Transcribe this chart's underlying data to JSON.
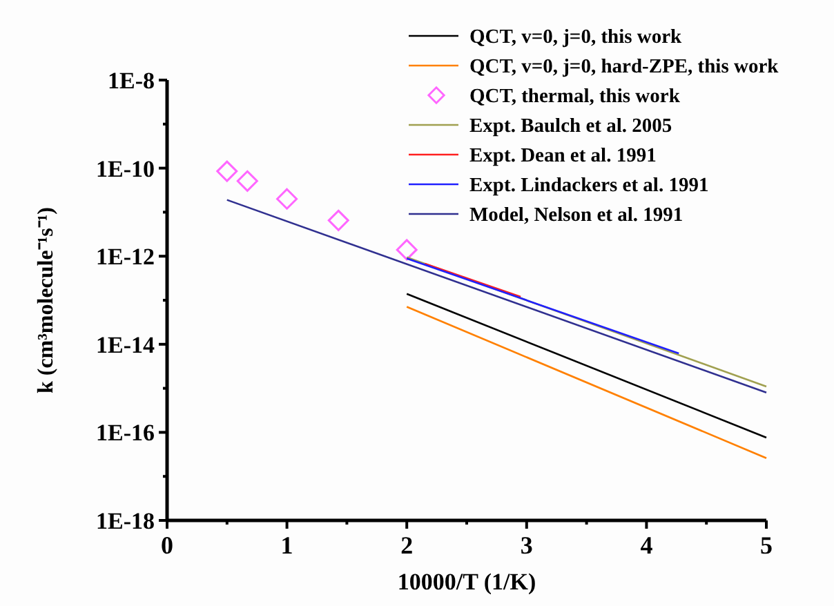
{
  "chart_data": {
    "type": "line",
    "xlabel": "10000/T (1/K)",
    "ylabel": "k (cm³molecule⁻¹s⁻¹)",
    "log": "y",
    "legend": "top right",
    "grid": false,
    "xlim": [
      0,
      5
    ],
    "xticks": [
      0,
      {
        "value": 0.5,
        "label": null
      },
      1,
      {
        "value": 1.5,
        "label": null
      },
      2,
      {
        "value": 2.5,
        "label": null
      },
      3,
      {
        "value": 3.5,
        "label": null
      },
      4,
      {
        "value": 4.5,
        "label": null
      },
      5
    ],
    "ylim": [
      1e-18,
      1e-08
    ],
    "yticks": [
      {
        "value": 1e-18,
        "label": "1E-18"
      },
      {
        "value": 1e-17,
        "label": null
      },
      {
        "value": 1e-16,
        "label": "1E-16"
      },
      {
        "value": 1e-15,
        "label": null
      },
      {
        "value": 1e-14,
        "label": "1E-14"
      },
      {
        "value": 1e-13,
        "label": null
      },
      {
        "value": 1e-12,
        "label": "1E-12"
      },
      {
        "value": 1e-11,
        "label": null
      },
      {
        "value": 1e-10,
        "label": "1E-10"
      },
      {
        "value": 1e-09,
        "label": null
      },
      {
        "value": 1e-08,
        "label": "1E-8"
      }
    ],
    "series": [
      {
        "name": "QCT, v=0, j=0, this work",
        "color": "#000000",
        "x": [
          2,
          5
        ],
        "values": [
          1.4e-13,
          7.6e-17
        ]
      },
      {
        "name": "QCT, v=0, j=0, hard-ZPE, this work",
        "color": "#ff8000",
        "x": [
          2,
          5
        ],
        "values": [
          7.1e-14,
          2.6e-17
        ]
      },
      {
        "name": "QCT, thermal, this work",
        "type": "scatter",
        "marker": "diamond",
        "color": "#ff66ff",
        "x": [
          0.5,
          0.67,
          1.0,
          1.43,
          2.0
        ],
        "values": [
          8.5e-11,
          5.1e-11,
          2e-11,
          6.5e-12,
          1.4e-12
        ]
      },
      {
        "name": "Expt. Baulch et al. 2005",
        "color": "#a0a050",
        "x": [
          2,
          5
        ],
        "values": [
          9.5e-13,
          1.1e-15
        ]
      },
      {
        "name": "Expt. Dean et al. 1991",
        "color": "#ff2020",
        "x": [
          2.15,
          2.95
        ],
        "values": [
          6.8e-13,
          1.2e-13
        ]
      },
      {
        "name": "Expt. Lindackers et al. 1991",
        "color": "#2020ff",
        "x": [
          2,
          4.27
        ],
        "values": [
          8.9e-13,
          6.2e-15
        ]
      },
      {
        "name": "Model, Nelson et al. 1991",
        "color": "#303090",
        "x": [
          0.5,
          5
        ],
        "values": [
          1.9e-11,
          8e-16
        ]
      }
    ]
  }
}
